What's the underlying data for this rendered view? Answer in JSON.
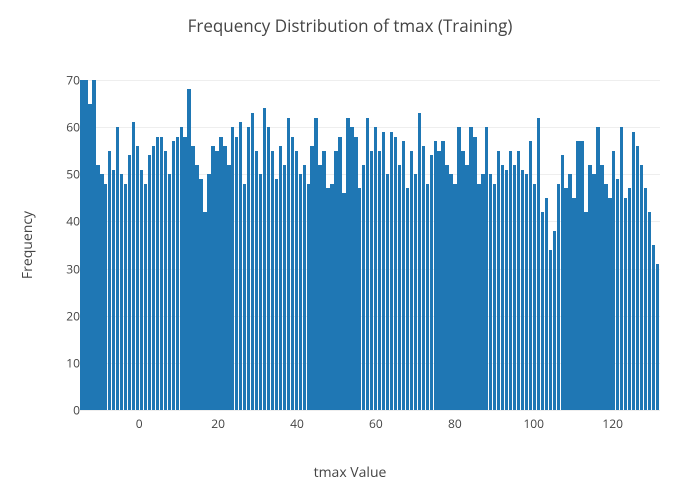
{
  "chart": {
    "type": "histogram",
    "title": "Frequency Distribution of tmax (Training)",
    "title_fontsize": 17,
    "title_color": "#444444",
    "xlabel": "tmax Value",
    "ylabel": "Frequency",
    "label_fontsize": 14,
    "label_color": "#444444",
    "tick_fontsize": 12,
    "tick_color": "#444444",
    "bar_color": "#1f77b4",
    "background_color": "#ffffff",
    "grid_color": "#eeeeee",
    "xlim": [
      -15,
      132
    ],
    "ylim": [
      0,
      70
    ],
    "ytick_step": 10,
    "x_ticks": [
      0,
      20,
      40,
      60,
      80,
      100,
      120
    ],
    "y_ticks": [
      0,
      10,
      20,
      30,
      40,
      50,
      60,
      70
    ],
    "values": [
      70,
      70,
      65,
      70,
      52,
      50,
      48,
      55,
      51,
      60,
      50,
      48,
      54,
      61,
      56,
      51,
      48,
      54,
      56,
      58,
      58,
      55,
      50,
      57,
      58,
      60,
      58,
      68,
      56,
      52,
      49,
      42,
      50,
      56,
      55,
      58,
      56,
      52,
      60,
      58,
      61,
      48,
      60,
      63,
      55,
      50,
      64,
      60,
      55,
      49,
      56,
      52,
      62,
      58,
      55,
      50,
      52,
      48,
      56,
      62,
      52,
      55,
      47,
      48,
      55,
      58,
      46,
      62,
      60,
      58,
      47,
      52,
      62,
      55,
      60,
      55,
      59,
      50,
      59,
      58,
      52,
      57,
      47,
      55,
      50,
      63,
      56,
      48,
      54,
      57,
      55,
      57,
      52,
      50,
      48,
      60,
      55,
      52,
      60,
      58,
      48,
      50,
      60,
      50,
      48,
      55,
      52,
      51,
      55,
      52,
      55,
      51,
      50,
      57,
      48,
      62,
      42,
      45,
      34,
      38,
      48,
      54,
      47,
      50,
      45,
      57,
      57,
      42,
      52,
      50,
      60,
      52,
      48,
      45,
      55,
      49,
      60,
      45,
      47,
      59,
      56,
      52,
      47,
      42,
      35,
      31
    ]
  }
}
